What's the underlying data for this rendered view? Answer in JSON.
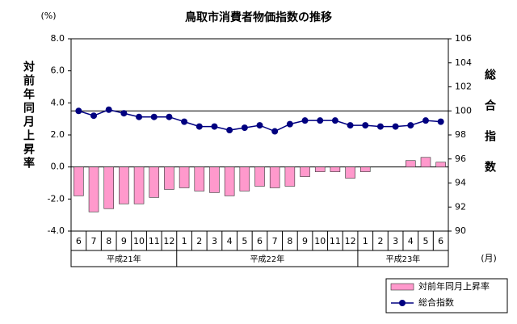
{
  "chart_data": {
    "type": "bar-line",
    "title": "鳥取市消費者物価指数の推移",
    "y_unit": "(%)",
    "x_unit": "(月)",
    "ylabel": "対前年同月上昇率",
    "y2label": "総合指数",
    "categories": [
      "6",
      "7",
      "8",
      "9",
      "10",
      "11",
      "12",
      "1",
      "2",
      "3",
      "4",
      "5",
      "6",
      "7",
      "8",
      "9",
      "10",
      "11",
      "12",
      "1",
      "2",
      "3",
      "4",
      "5",
      "6"
    ],
    "groups": [
      {
        "label": "平成21年",
        "count": 7
      },
      {
        "label": "平成22年",
        "count": 12
      },
      {
        "label": "平成23年",
        "count": 6
      }
    ],
    "series": [
      {
        "name": "対前年同月上昇率",
        "type": "bar",
        "color": "#ff99cc",
        "values": [
          -1.8,
          -2.8,
          -2.6,
          -2.3,
          -2.3,
          -1.9,
          -1.4,
          -1.3,
          -1.5,
          -1.6,
          -1.8,
          -1.5,
          -1.2,
          -1.3,
          -1.2,
          -0.6,
          -0.3,
          -0.3,
          -0.7,
          -0.3,
          0,
          0,
          0.4,
          0.6,
          0.3
        ]
      },
      {
        "name": "総合指数",
        "type": "line",
        "axis": "y2",
        "color": "#000080",
        "values": [
          100.0,
          99.6,
          100.1,
          99.8,
          99.5,
          99.5,
          99.5,
          99.1,
          98.7,
          98.7,
          98.4,
          98.6,
          98.8,
          98.3,
          98.9,
          99.2,
          99.2,
          99.2,
          98.8,
          98.8,
          98.7,
          98.7,
          98.8,
          99.2,
          99.1
        ]
      }
    ],
    "ylim": [
      -4,
      8
    ],
    "yticks": [
      {
        "value": -4,
        "label": "-4.0"
      },
      {
        "value": -2,
        "label": "-2.0"
      },
      {
        "value": 0,
        "label": "0.0"
      },
      {
        "value": 2,
        "label": "2.0"
      },
      {
        "value": 4,
        "label": "4.0"
      },
      {
        "value": 6,
        "label": "6.0"
      },
      {
        "value": 8,
        "label": "8.0"
      }
    ],
    "y2lim": [
      90,
      106
    ],
    "y2ticks": [
      90,
      92,
      94,
      96,
      98,
      100,
      102,
      104,
      106
    ],
    "reference_line": {
      "axis": "y2",
      "value": 100
    }
  }
}
